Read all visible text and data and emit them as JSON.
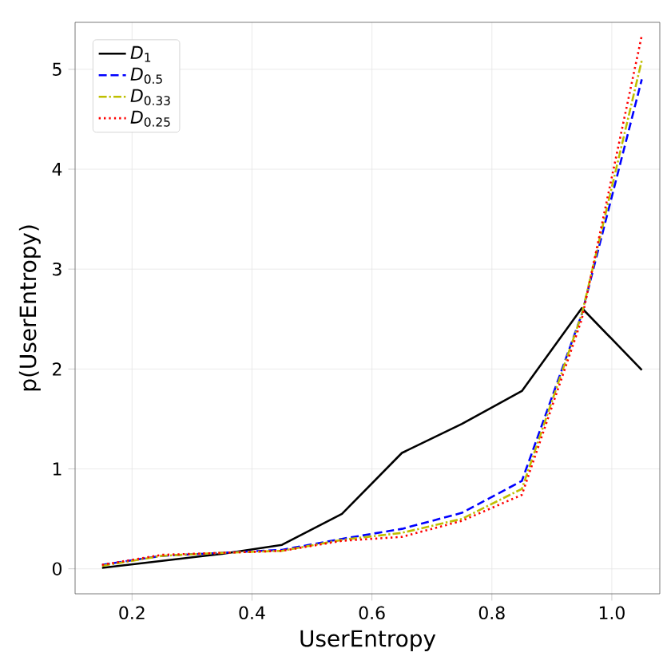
{
  "chart_data": {
    "type": "line",
    "xlabel": "UserEntropy",
    "ylabel": "p(UserEntropy)",
    "x": [
      0.15,
      0.25,
      0.35,
      0.45,
      0.55,
      0.65,
      0.75,
      0.85,
      0.95,
      1.05
    ],
    "series": [
      {
        "name": "*D*$_{1}$",
        "color": "#000000",
        "line_style": "solid",
        "values": [
          0.01,
          0.08,
          0.15,
          0.24,
          0.55,
          1.16,
          1.45,
          1.78,
          2.61,
          1.99
        ]
      },
      {
        "name": "*D*$_{0.5}$",
        "color": "#0000ff",
        "line_style": "dashed",
        "values": [
          0.04,
          0.13,
          0.16,
          0.19,
          0.3,
          0.4,
          0.56,
          0.88,
          2.55,
          4.9
        ]
      },
      {
        "name": "*D*$_{0.33}$",
        "color": "#bfbf00",
        "line_style": "dashdot",
        "values": [
          0.03,
          0.13,
          0.16,
          0.18,
          0.29,
          0.36,
          0.5,
          0.8,
          2.55,
          5.09
        ]
      },
      {
        "name": "*D*$_{0.25}$",
        "color": "#ff0000",
        "line_style": "dotted",
        "values": [
          0.04,
          0.14,
          0.16,
          0.18,
          0.28,
          0.32,
          0.48,
          0.74,
          2.5,
          5.34
        ]
      }
    ],
    "xlim": [
      0.105,
      1.08
    ],
    "ylim": [
      -0.25,
      5.47
    ],
    "xticks": [
      {
        "value": 0.2,
        "label": "0.2"
      },
      {
        "value": 0.4,
        "label": "0.4"
      },
      {
        "value": 0.6,
        "label": "0.6"
      },
      {
        "value": 0.8,
        "label": "0.8"
      },
      {
        "value": 1.0,
        "label": "1.0"
      }
    ],
    "yticks": [
      0,
      1,
      2,
      3,
      4,
      5
    ],
    "grid": true,
    "legend": "top left",
    "marker": "none"
  }
}
